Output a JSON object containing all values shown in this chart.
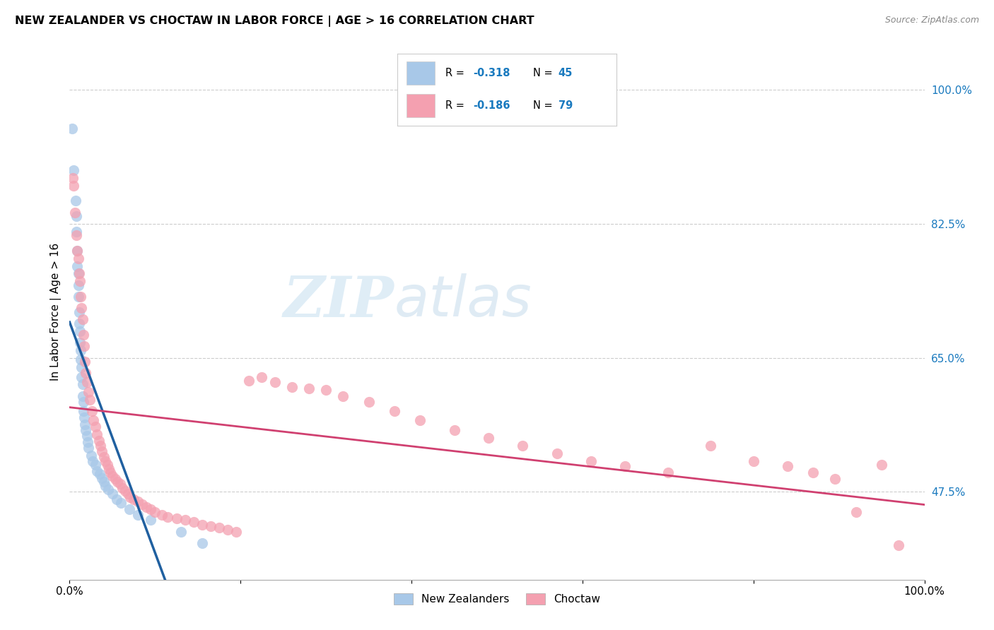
{
  "title": "NEW ZEALANDER VS CHOCTAW IN LABOR FORCE | AGE > 16 CORRELATION CHART",
  "source": "Source: ZipAtlas.com",
  "ylabel": "In Labor Force | Age > 16",
  "xlim": [
    0.0,
    1.0
  ],
  "ylim": [
    0.36,
    1.06
  ],
  "x_ticks": [
    0.0,
    0.2,
    0.4,
    0.6,
    0.8,
    1.0
  ],
  "x_tick_labels": [
    "0.0%",
    "",
    "",
    "",
    "",
    "100.0%"
  ],
  "y_tick_labels_right": [
    "100.0%",
    "82.5%",
    "65.0%",
    "47.5%"
  ],
  "y_ticks_right": [
    1.0,
    0.825,
    0.65,
    0.475
  ],
  "watermark_zip": "ZIP",
  "watermark_atlas": "atlas",
  "color_nz": "#a8c8e8",
  "color_choctaw": "#f4a0b0",
  "color_nz_line": "#2060a0",
  "color_choctaw_line": "#d04070",
  "color_dash": "#a8c8e8",
  "nz_x": [
    0.003,
    0.005,
    0.007,
    0.008,
    0.008,
    0.009,
    0.009,
    0.01,
    0.01,
    0.01,
    0.011,
    0.011,
    0.012,
    0.012,
    0.013,
    0.013,
    0.014,
    0.014,
    0.015,
    0.015,
    0.016,
    0.016,
    0.017,
    0.018,
    0.019,
    0.02,
    0.021,
    0.022,
    0.025,
    0.027,
    0.03,
    0.032,
    0.035,
    0.038,
    0.04,
    0.042,
    0.045,
    0.05,
    0.055,
    0.06,
    0.07,
    0.08,
    0.095,
    0.13,
    0.155
  ],
  "nz_y": [
    0.95,
    0.895,
    0.855,
    0.835,
    0.815,
    0.79,
    0.77,
    0.76,
    0.745,
    0.73,
    0.71,
    0.695,
    0.685,
    0.67,
    0.66,
    0.648,
    0.638,
    0.625,
    0.615,
    0.6,
    0.592,
    0.58,
    0.572,
    0.563,
    0.555,
    0.548,
    0.54,
    0.532,
    0.522,
    0.515,
    0.51,
    0.502,
    0.498,
    0.493,
    0.488,
    0.482,
    0.478,
    0.472,
    0.465,
    0.46,
    0.452,
    0.445,
    0.438,
    0.422,
    0.408
  ],
  "choctaw_x": [
    0.004,
    0.005,
    0.006,
    0.008,
    0.009,
    0.01,
    0.011,
    0.012,
    0.013,
    0.014,
    0.015,
    0.016,
    0.017,
    0.018,
    0.019,
    0.02,
    0.022,
    0.024,
    0.026,
    0.028,
    0.03,
    0.032,
    0.034,
    0.036,
    0.038,
    0.04,
    0.042,
    0.044,
    0.046,
    0.048,
    0.05,
    0.053,
    0.056,
    0.059,
    0.062,
    0.065,
    0.068,
    0.071,
    0.075,
    0.08,
    0.085,
    0.09,
    0.095,
    0.1,
    0.108,
    0.115,
    0.125,
    0.135,
    0.145,
    0.155,
    0.165,
    0.175,
    0.185,
    0.195,
    0.21,
    0.225,
    0.24,
    0.26,
    0.28,
    0.3,
    0.32,
    0.35,
    0.38,
    0.41,
    0.45,
    0.49,
    0.53,
    0.57,
    0.61,
    0.65,
    0.7,
    0.75,
    0.8,
    0.84,
    0.87,
    0.895,
    0.92,
    0.95,
    0.97
  ],
  "choctaw_y": [
    0.885,
    0.875,
    0.84,
    0.81,
    0.79,
    0.78,
    0.76,
    0.75,
    0.73,
    0.715,
    0.7,
    0.68,
    0.665,
    0.645,
    0.63,
    0.618,
    0.605,
    0.595,
    0.58,
    0.568,
    0.56,
    0.55,
    0.542,
    0.535,
    0.528,
    0.52,
    0.515,
    0.51,
    0.505,
    0.5,
    0.495,
    0.492,
    0.488,
    0.485,
    0.48,
    0.476,
    0.472,
    0.468,
    0.465,
    0.462,
    0.458,
    0.455,
    0.452,
    0.448,
    0.445,
    0.442,
    0.44,
    0.438,
    0.435,
    0.432,
    0.43,
    0.428,
    0.425,
    0.422,
    0.62,
    0.625,
    0.618,
    0.612,
    0.61,
    0.608,
    0.6,
    0.592,
    0.58,
    0.568,
    0.555,
    0.545,
    0.535,
    0.525,
    0.515,
    0.508,
    0.5,
    0.535,
    0.515,
    0.508,
    0.5,
    0.492,
    0.448,
    0.51,
    0.405
  ]
}
